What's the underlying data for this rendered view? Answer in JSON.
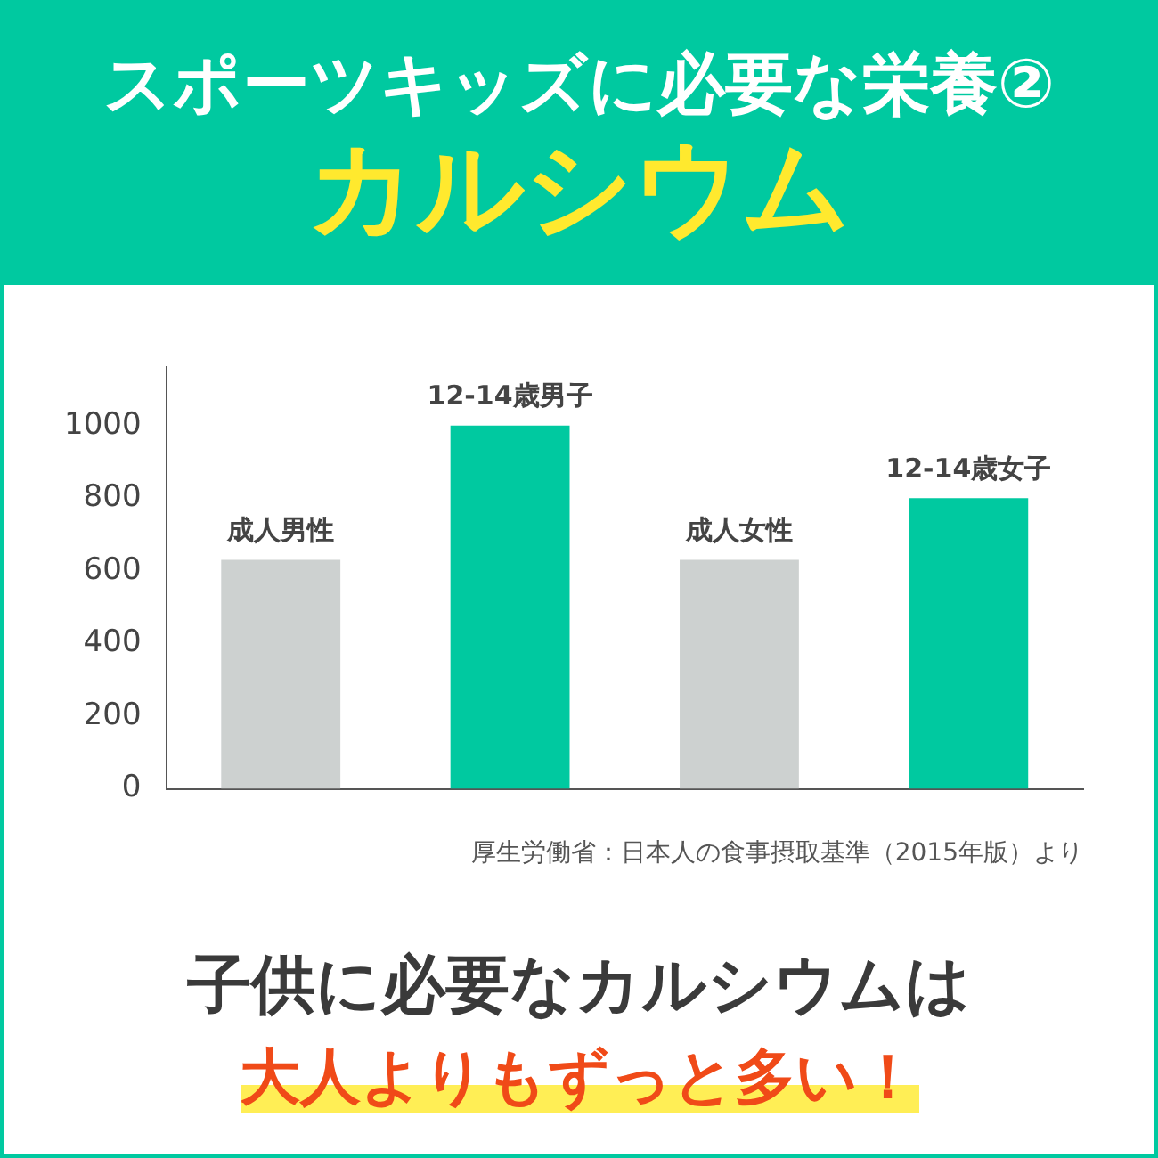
{
  "chart_data": {
    "type": "bar",
    "title": "スポーツキッズに必要な栄養②",
    "subtitle": "カルシウム",
    "categories": [
      "成人男性",
      "12-14歳男子",
      "成人女性",
      "12-14歳女子"
    ],
    "values": [
      630,
      1000,
      630,
      800
    ],
    "colors": [
      "#cdd1d0",
      "#00c9a0",
      "#cdd1d0",
      "#00c9a0"
    ],
    "ylim": [
      0,
      1160
    ],
    "yticks": [
      0,
      200,
      400,
      600,
      800,
      1000
    ],
    "grid": false,
    "legend": false,
    "annotations": [
      "厚生労働省：日本人の食事摂取基準（2015年版）より",
      "子供に必要なカルシウムは",
      "大人よりもずっと多い！"
    ]
  }
}
